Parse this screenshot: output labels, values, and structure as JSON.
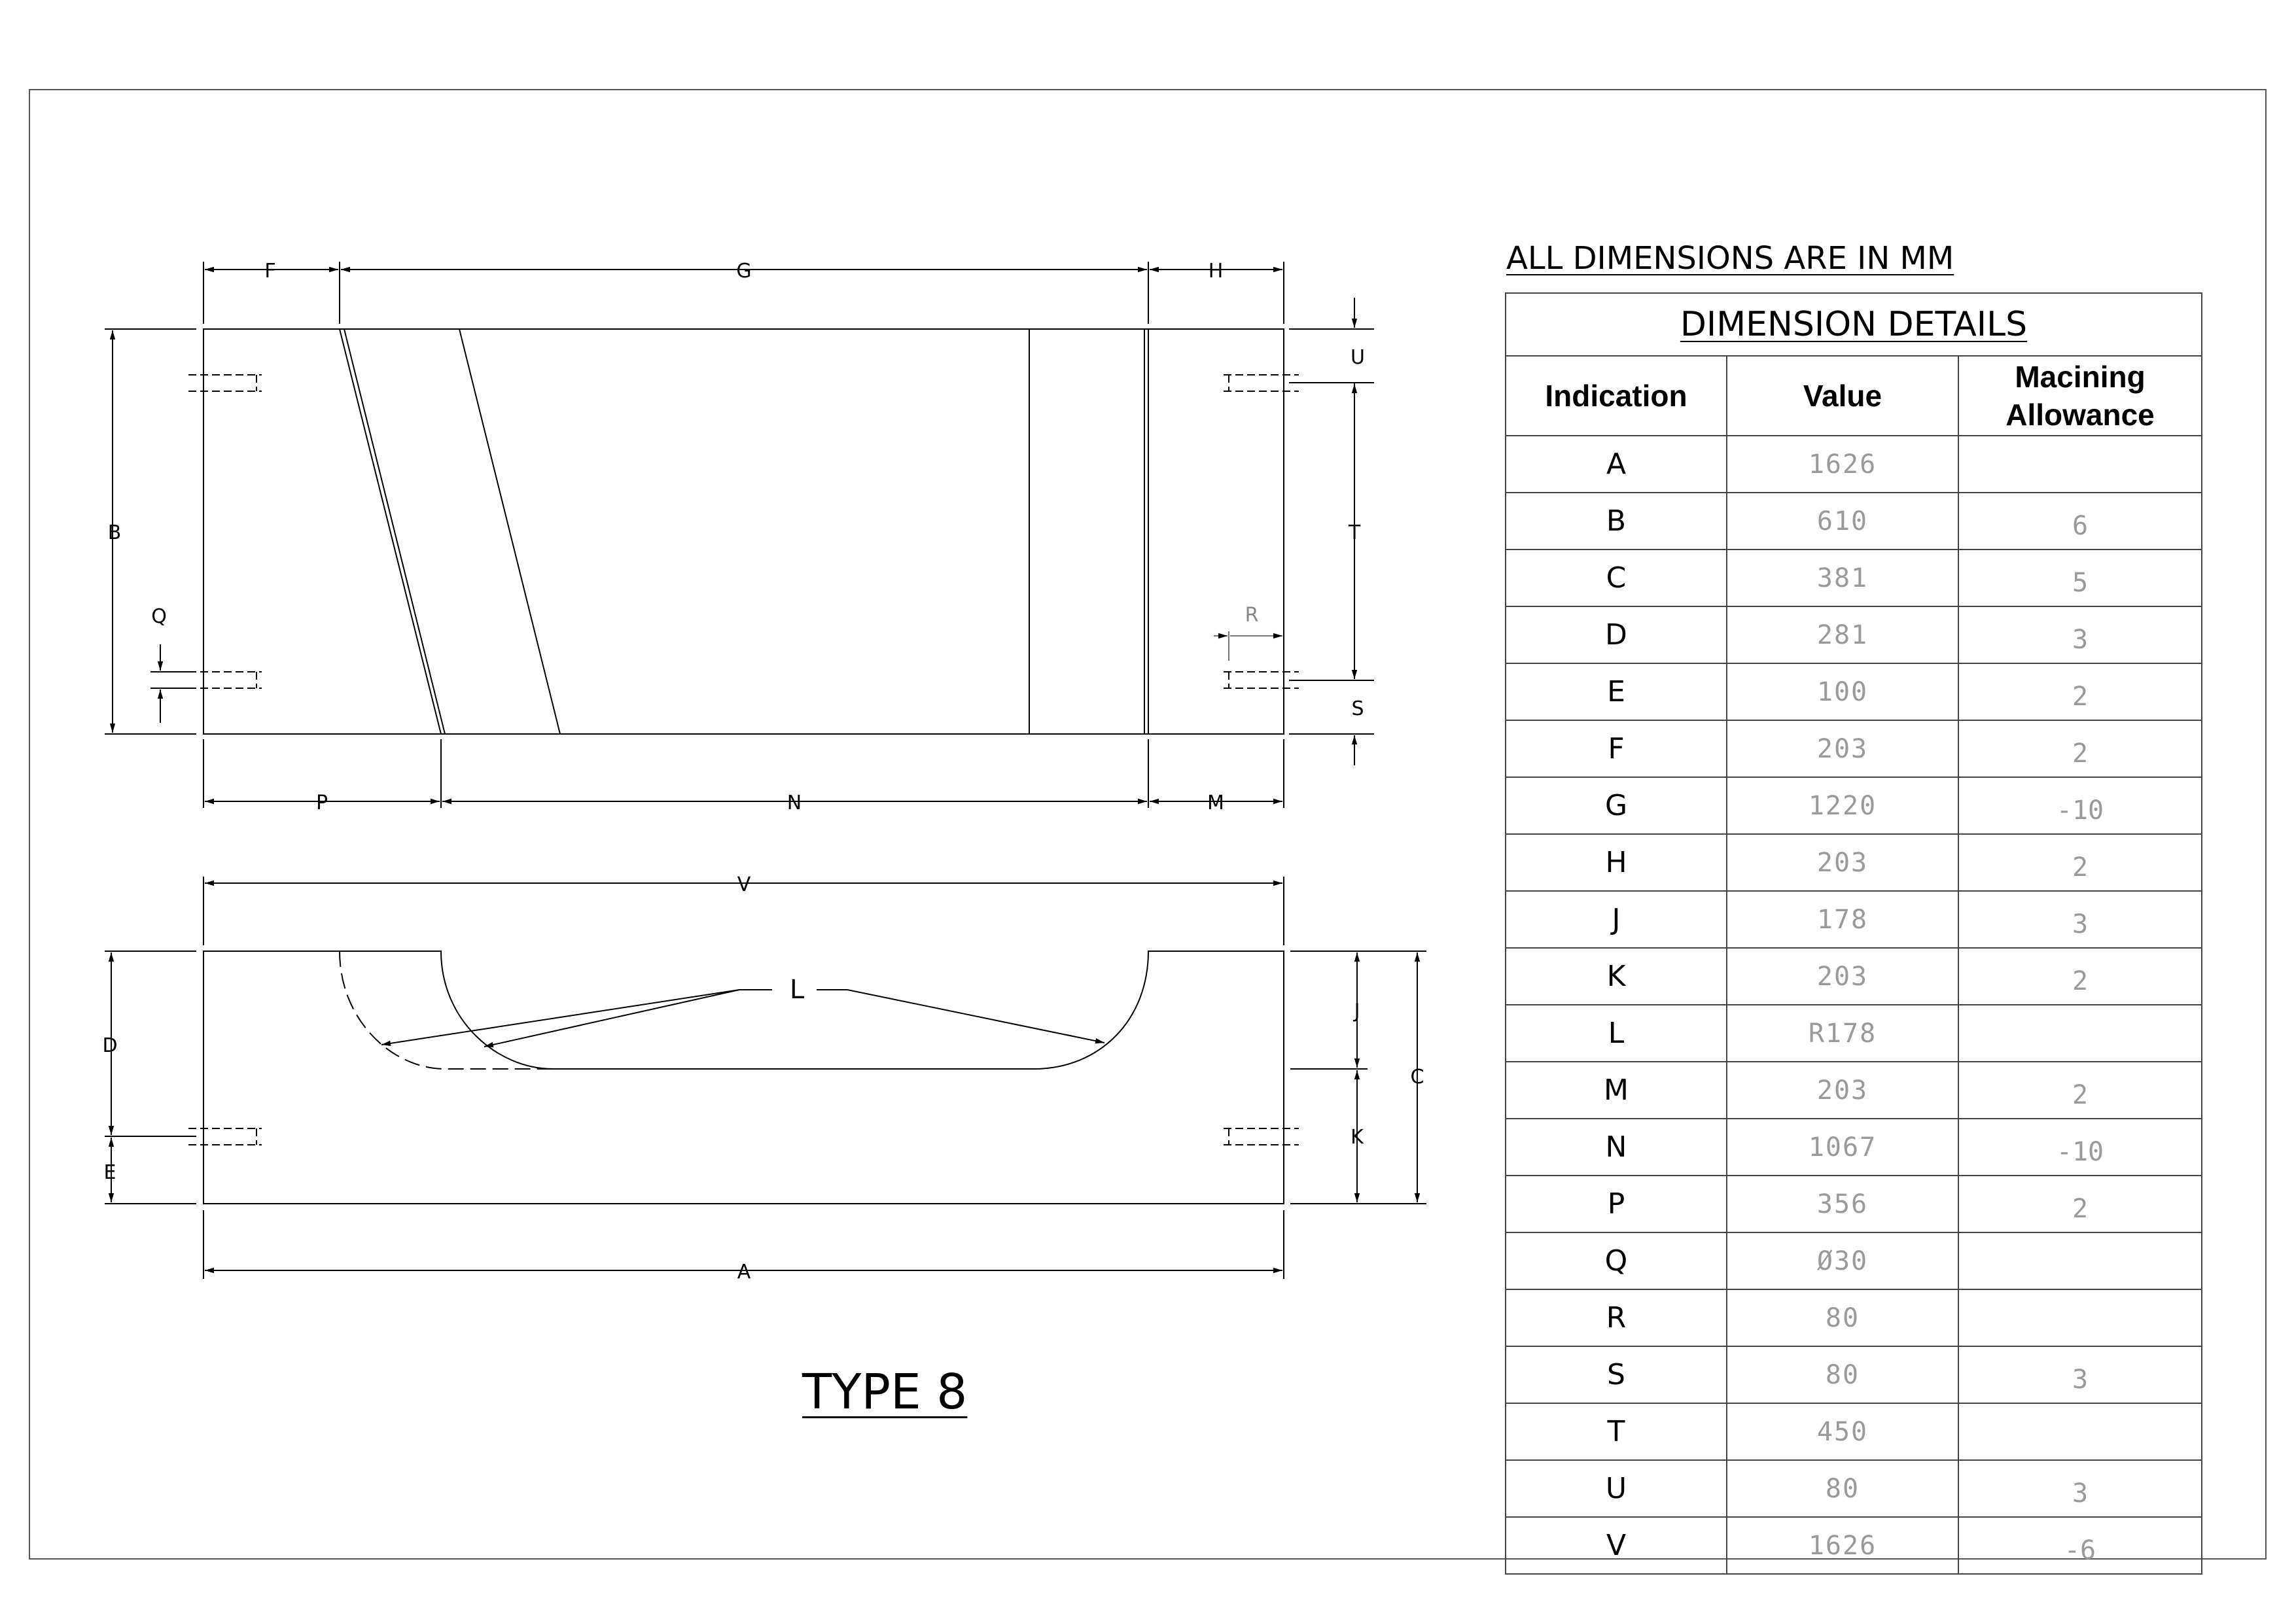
{
  "note": "ALL DIMENSIONS ARE IN MM",
  "drawing_title": "TYPE 8",
  "table": {
    "caption": "DIMENSION DETAILS",
    "headers": {
      "indication": "Indication",
      "value": "Value",
      "allowance_line1": "Macining",
      "allowance_line2": "Allowance"
    },
    "rows": [
      {
        "indication": "A",
        "value": "1626",
        "allowance": ""
      },
      {
        "indication": "B",
        "value": "610",
        "allowance": "6"
      },
      {
        "indication": "C",
        "value": "381",
        "allowance": "5"
      },
      {
        "indication": "D",
        "value": "281",
        "allowance": "3"
      },
      {
        "indication": "E",
        "value": "100",
        "allowance": "2"
      },
      {
        "indication": "F",
        "value": "203",
        "allowance": "2"
      },
      {
        "indication": "G",
        "value": "1220",
        "allowance": "-10"
      },
      {
        "indication": "H",
        "value": "203",
        "allowance": "2"
      },
      {
        "indication": "J",
        "value": "178",
        "allowance": "3"
      },
      {
        "indication": "K",
        "value": "203",
        "allowance": "2"
      },
      {
        "indication": "L",
        "value": "R178",
        "allowance": ""
      },
      {
        "indication": "M",
        "value": "203",
        "allowance": "2"
      },
      {
        "indication": "N",
        "value": "1067",
        "allowance": "-10"
      },
      {
        "indication": "P",
        "value": "356",
        "allowance": "2"
      },
      {
        "indication": "Q",
        "value": "Ø30",
        "allowance": ""
      },
      {
        "indication": "R",
        "value": "80",
        "allowance": ""
      },
      {
        "indication": "S",
        "value": "80",
        "allowance": "3"
      },
      {
        "indication": "T",
        "value": "450",
        "allowance": ""
      },
      {
        "indication": "U",
        "value": "80",
        "allowance": "3"
      },
      {
        "indication": "V",
        "value": "1626",
        "allowance": "-6"
      }
    ]
  },
  "dimension_labels": {
    "A": "A",
    "B": "B",
    "C": "C",
    "D": "D",
    "E": "E",
    "F": "F",
    "G": "G",
    "H": "H",
    "J": "J",
    "K": "K",
    "L": "L",
    "M": "M",
    "N": "N",
    "P": "P",
    "Q": "Q",
    "R": "R",
    "S": "S",
    "T": "T",
    "U": "U",
    "V": "V"
  }
}
